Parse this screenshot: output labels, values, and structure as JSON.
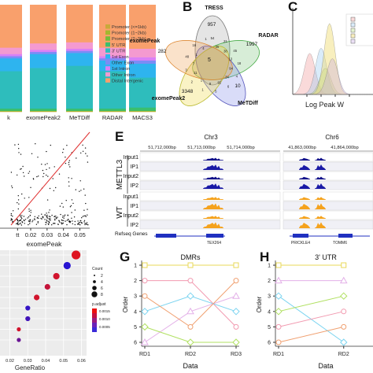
{
  "panel_letters": {
    "B": "B",
    "C": "C",
    "E": "E",
    "G": "G",
    "H": "H"
  },
  "colors": {
    "distal_intergenic": "#f9a06c",
    "other_intron": "#f49ad0",
    "first_intron": "#d980f6",
    "other_exon": "#7b8cf5",
    "first_exon": "#2eb4ef",
    "utr3": "#2ebdbc",
    "utr5": "#3abf6d",
    "promoter_2_3kb": "#72bd3a",
    "promoter_1_2kb": "#a4b72e",
    "promoter_le1kb": "#c9a93a",
    "input_track": "#12128a",
    "ip_mettl3": "#1a1aa6",
    "ip_wt": "#f5a21c",
    "fit_line": "#e03030",
    "gene_model": "#2030c0"
  },
  "chart_data": [
    {
      "panel": "A",
      "type": "bar",
      "subtype": "stacked-100",
      "categories": [
        "k",
        "exomePeak2",
        "MeTDiff",
        "RADAR",
        "MACS3"
      ],
      "legend_placement": "right",
      "series": [
        {
          "name": "Promoter (<=1kb)",
          "values": [
            0.5,
            0.5,
            0.5,
            0.5,
            0.5
          ]
        },
        {
          "name": "Promoter (1~2kb)",
          "values": [
            0.3,
            0.3,
            0.3,
            0.3,
            0.3
          ]
        },
        {
          "name": "Promoter (2~3kb)",
          "values": [
            0.3,
            0.3,
            0.3,
            0.3,
            0.3
          ]
        },
        {
          "name": "5' UTR",
          "values": [
            2,
            2,
            2,
            2,
            3
          ]
        },
        {
          "name": "3' UTR",
          "values": [
            35,
            38,
            40,
            35,
            28
          ]
        },
        {
          "name": "1st Exon",
          "values": [
            12,
            13,
            12,
            10,
            13
          ]
        },
        {
          "name": "Other Exon",
          "values": [
            2,
            2,
            2,
            2,
            3
          ]
        },
        {
          "name": "1st Intron",
          "values": [
            2,
            2,
            2,
            2,
            3
          ]
        },
        {
          "name": "Other Intron",
          "values": [
            6,
            6,
            6,
            8,
            8
          ]
        },
        {
          "name": "Distal Intergenic",
          "values": [
            40,
            36,
            35,
            40,
            41
          ]
        }
      ]
    },
    {
      "panel": "venn",
      "type": "diagram",
      "sets": [
        "TRESS",
        "RADAR",
        "MeTDiff",
        "exomePeak2",
        "exomePeak"
      ],
      "region_values": [
        "957",
        "1997",
        "10",
        "3348",
        "282",
        "5",
        "54",
        "35",
        "21",
        "38",
        "45",
        "13",
        "18",
        "94",
        "4",
        "34",
        "6",
        "92",
        "5",
        "8",
        "1",
        "1",
        "2",
        "11",
        "3",
        "7",
        "48",
        "1",
        "16",
        "4",
        "1"
      ]
    },
    {
      "panel": "C",
      "type": "area",
      "xlabel": "Log Peak W",
      "series": [
        {
          "name": "",
          "mode": 4.2,
          "peak": 0.55
        },
        {
          "name": "",
          "mode": 5.0,
          "peak": 0.62
        },
        {
          "name": "",
          "mode": 5.3,
          "peak": 0.35
        },
        {
          "name": "",
          "mode": 5.6,
          "peak": 0.95
        },
        {
          "name": "",
          "mode": 5.8,
          "peak": 0.48
        }
      ]
    },
    {
      "panel": "scatter",
      "type": "scatter",
      "xlabel": "exomePeak",
      "xticks": [
        "tt",
        "0.02",
        "0.03",
        "0.04",
        "0.05"
      ],
      "xlim": [
        0.008,
        0.056
      ],
      "fit_line": {
        "x": [
          0.008,
          0.056
        ],
        "y": [
          0.004,
          0.058
        ]
      }
    },
    {
      "panel": "dot",
      "type": "scatter",
      "xlabel": "GeneRatio",
      "xticks": [
        "0.02",
        "0.03",
        "0.04",
        "0.05",
        "0.06"
      ],
      "xlim": [
        0.018,
        0.062
      ],
      "size_legend_title": "Count",
      "size_legend": [
        "2",
        "4",
        "6",
        "8"
      ],
      "color_legend_title": "p.adjust",
      "color_legend": [
        "0.0015",
        "0.0010",
        "0.0005"
      ],
      "points": [
        {
          "x": 0.057,
          "row": 1,
          "size": 8,
          "padj": 0.0017
        },
        {
          "x": 0.052,
          "row": 2,
          "size": 6,
          "padj": 0.0003
        },
        {
          "x": 0.046,
          "row": 3,
          "size": 5,
          "padj": 0.0016
        },
        {
          "x": 0.041,
          "row": 4,
          "size": 4,
          "padj": 0.0015
        },
        {
          "x": 0.035,
          "row": 5,
          "size": 4,
          "padj": 0.0016
        },
        {
          "x": 0.03,
          "row": 6,
          "size": 3,
          "padj": 0.0004
        },
        {
          "x": 0.03,
          "row": 7,
          "size": 3,
          "padj": 0.0005
        },
        {
          "x": 0.025,
          "row": 8,
          "size": 2,
          "padj": 0.0016
        },
        {
          "x": 0.025,
          "row": 9,
          "size": 2,
          "padj": 0.0008
        }
      ]
    },
    {
      "panel": "G",
      "type": "line",
      "title": "DMRs",
      "xlabel": "Data",
      "ylabel": "Order",
      "categories": [
        "RD1",
        "RD2",
        "RD3"
      ],
      "yticks": [
        "1",
        "2",
        "3",
        "4",
        "5",
        "6"
      ],
      "series": [
        {
          "color": "#e8d85a",
          "marker": "square",
          "values": [
            1,
            1,
            1
          ]
        },
        {
          "color": "#f29ab0",
          "marker": "circle",
          "values": [
            2,
            2,
            5
          ]
        },
        {
          "color": "#7bd4f0",
          "marker": "diamond",
          "values": [
            4,
            3,
            4
          ]
        },
        {
          "color": "#e3b0e8",
          "marker": "triangle",
          "values": [
            6,
            4,
            3
          ]
        },
        {
          "color": "#f0a070",
          "marker": "circle",
          "values": [
            3,
            5,
            2
          ]
        },
        {
          "color": "#b0e060",
          "marker": "diamond",
          "values": [
            5,
            6,
            6
          ]
        }
      ]
    },
    {
      "panel": "H",
      "type": "line",
      "title": "3' UTR",
      "xlabel": "Data",
      "ylabel": "Order",
      "categories": [
        "RD1",
        "RD2"
      ],
      "yticks": [
        "1",
        "2",
        "3",
        "4",
        "5",
        "6"
      ],
      "series": [
        {
          "color": "#e8d85a",
          "marker": "square",
          "values": [
            1,
            1
          ]
        },
        {
          "color": "#e3b0e8",
          "marker": "triangle",
          "values": [
            2,
            2
          ]
        },
        {
          "color": "#7bd4f0",
          "marker": "diamond",
          "values": [
            3,
            6
          ]
        },
        {
          "color": "#b0e060",
          "marker": "diamond",
          "values": [
            4,
            3
          ]
        },
        {
          "color": "#f29ab0",
          "marker": "circle",
          "values": [
            5,
            4
          ]
        },
        {
          "color": "#f0a070",
          "marker": "circle",
          "values": [
            6,
            5
          ]
        }
      ]
    }
  ],
  "browser": {
    "chr3": "Chr3",
    "chr6": "Chr6",
    "coords_left": [
      "51,712,000bp",
      "51,713,000bp",
      "51,714,000bp"
    ],
    "coords_right": [
      "41,863,000bp",
      "41,864,000bp"
    ],
    "groups": [
      "METTL3",
      "WT"
    ],
    "tracks": [
      "Input1",
      "IP1",
      "Input2",
      "IP2",
      "Input1",
      "IP1",
      "Input2",
      "IP2"
    ],
    "refseq_label": "Refseq Genes",
    "genes": [
      "TEX264",
      "PRICKLE4",
      "TOMM6"
    ]
  }
}
